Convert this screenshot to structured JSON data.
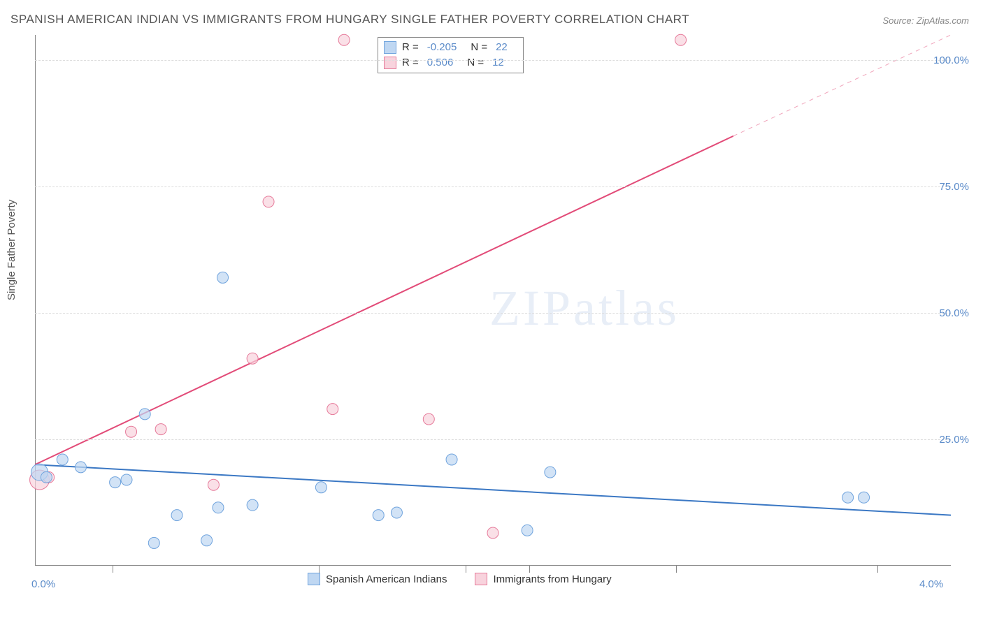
{
  "title": "SPANISH AMERICAN INDIAN VS IMMIGRANTS FROM HUNGARY SINGLE FATHER POVERTY CORRELATION CHART",
  "source": "Source: ZipAtlas.com",
  "watermark": "ZIPatlas",
  "y_axis_label": "Single Father Poverty",
  "chart": {
    "type": "scatter",
    "background_color": "#ffffff",
    "grid_color": "#dddddd",
    "axis_color": "#888888",
    "xlim": [
      0.0,
      4.0
    ],
    "ylim": [
      0.0,
      105.0
    ],
    "x_tick_labels": [
      "0.0%",
      "4.0%"
    ],
    "x_tick_positions_pct": [
      0,
      100
    ],
    "x_minor_ticks_pct": [
      8.5,
      31,
      47,
      54,
      70,
      92
    ],
    "y_tick_labels": [
      "25.0%",
      "50.0%",
      "75.0%",
      "100.0%"
    ],
    "y_tick_values": [
      25,
      50,
      75,
      100
    ],
    "tick_label_color": "#5b8bc9",
    "tick_fontsize": 15,
    "axis_label_color": "#555555",
    "axis_label_fontsize": 15,
    "series": [
      {
        "name": "Spanish American Indians",
        "color_fill": "#bfd7f2",
        "color_stroke": "#6fa3dd",
        "marker_radius": 8,
        "R": "-0.205",
        "N": "22",
        "trendline": {
          "x1": 0.0,
          "y1": 20.0,
          "x2": 4.0,
          "y2": 10.0,
          "color": "#3b78c4",
          "width": 2
        },
        "points": [
          {
            "x": 0.02,
            "y": 18.5,
            "r": 12
          },
          {
            "x": 0.05,
            "y": 17.5
          },
          {
            "x": 0.12,
            "y": 21.0
          },
          {
            "x": 0.2,
            "y": 19.5
          },
          {
            "x": 0.35,
            "y": 16.5
          },
          {
            "x": 0.4,
            "y": 17.0
          },
          {
            "x": 0.48,
            "y": 30.0
          },
          {
            "x": 0.52,
            "y": 4.5
          },
          {
            "x": 0.62,
            "y": 10.0
          },
          {
            "x": 0.75,
            "y": 5.0
          },
          {
            "x": 0.8,
            "y": 11.5
          },
          {
            "x": 0.82,
            "y": 57.0
          },
          {
            "x": 0.95,
            "y": 12.0
          },
          {
            "x": 1.25,
            "y": 15.5
          },
          {
            "x": 1.5,
            "y": 10.0
          },
          {
            "x": 1.58,
            "y": 10.5
          },
          {
            "x": 1.82,
            "y": 21.0
          },
          {
            "x": 2.15,
            "y": 7.0
          },
          {
            "x": 2.25,
            "y": 18.5
          },
          {
            "x": 3.55,
            "y": 13.5
          },
          {
            "x": 3.62,
            "y": 13.5
          }
        ]
      },
      {
        "name": "Immigrants from Hungary",
        "color_fill": "#f8d3dd",
        "color_stroke": "#e67a9a",
        "marker_radius": 8,
        "R": "0.506",
        "N": "12",
        "trendline": {
          "x1": 0.0,
          "y1": 20.0,
          "x2": 3.05,
          "y2": 85.0,
          "color": "#e24b78",
          "width": 2,
          "dash_x1": 3.05,
          "dash_y1": 85.0,
          "dash_x2": 4.0,
          "dash_y2": 105.0
        },
        "points": [
          {
            "x": 0.02,
            "y": 17.0,
            "r": 14
          },
          {
            "x": 0.06,
            "y": 17.5
          },
          {
            "x": 0.42,
            "y": 26.5
          },
          {
            "x": 0.55,
            "y": 27.0
          },
          {
            "x": 0.78,
            "y": 16.0
          },
          {
            "x": 0.95,
            "y": 41.0
          },
          {
            "x": 1.02,
            "y": 72.0
          },
          {
            "x": 1.3,
            "y": 31.0
          },
          {
            "x": 1.35,
            "y": 104.0
          },
          {
            "x": 1.72,
            "y": 29.0
          },
          {
            "x": 2.0,
            "y": 6.5
          },
          {
            "x": 2.82,
            "y": 104.0
          }
        ]
      }
    ]
  },
  "legend_top": {
    "r_label": "R =",
    "n_label": "N ="
  },
  "legend_bottom": {
    "series1": "Spanish American Indians",
    "series2": "Immigrants from Hungary"
  }
}
